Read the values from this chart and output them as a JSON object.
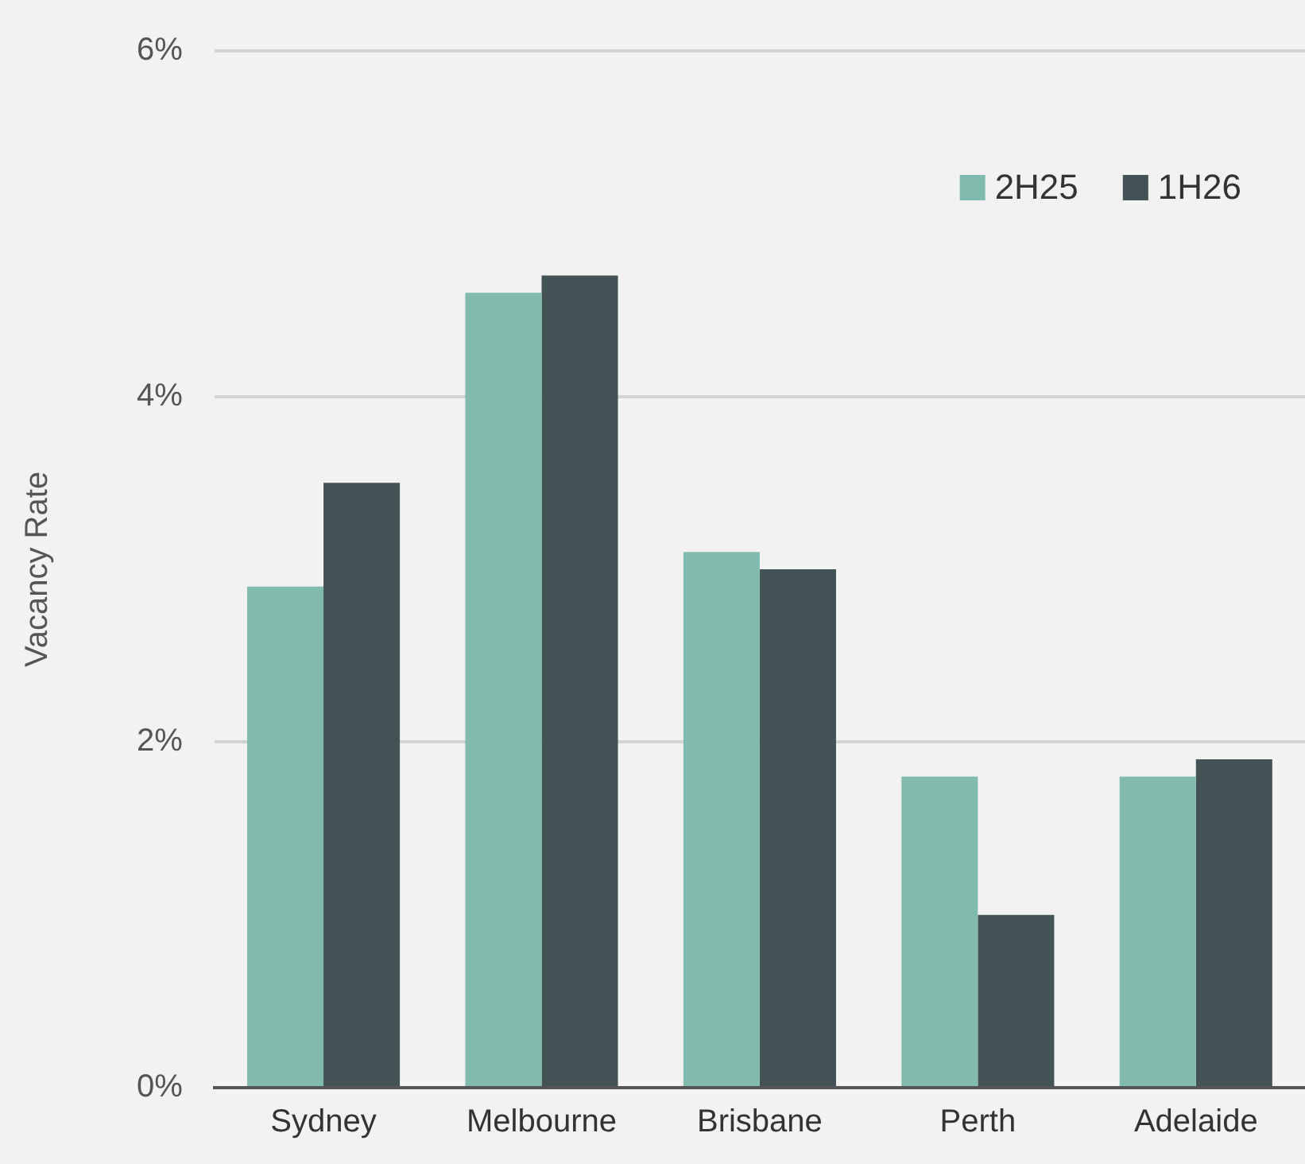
{
  "chart_data": {
    "type": "bar",
    "ylabel": "Vacancy Rate",
    "categories": [
      "Sydney",
      "Melbourne",
      "Brisbane",
      "Perth",
      "Adelaide"
    ],
    "series": [
      {
        "name": "2H25",
        "color": "#80bbad",
        "values": [
          2.9,
          4.6,
          3.1,
          1.8,
          1.8
        ]
      },
      {
        "name": "1H26",
        "color": "#435254",
        "values": [
          3.5,
          4.7,
          3.0,
          1.0,
          1.9
        ]
      }
    ],
    "ylim": [
      0,
      6
    ],
    "yticks": [
      {
        "value": 0,
        "label": "0%"
      },
      {
        "value": 2,
        "label": "2%"
      },
      {
        "value": 4,
        "label": "4%"
      },
      {
        "value": 6,
        "label": "6%"
      }
    ],
    "grid": "y",
    "legend": "top right"
  }
}
